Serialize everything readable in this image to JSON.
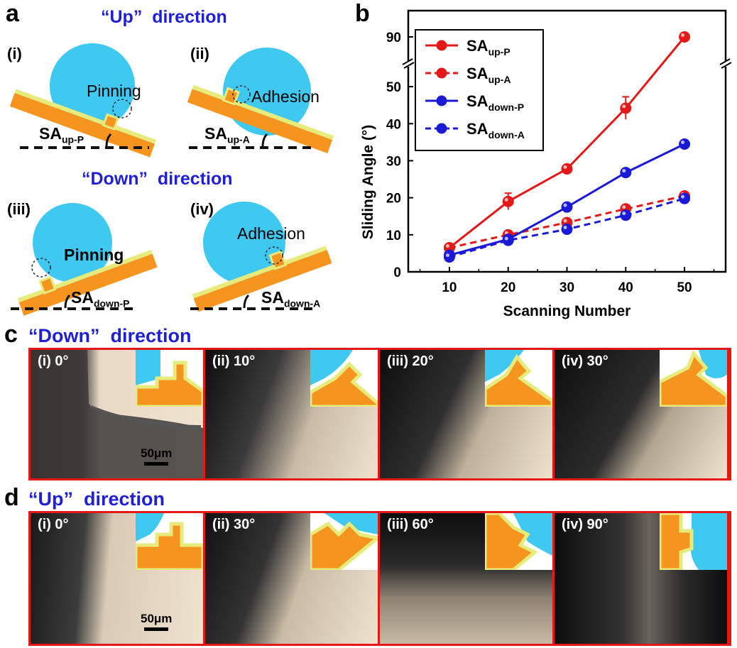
{
  "panel_letters": {
    "a": "a",
    "b": "b",
    "c": "c",
    "d": "d"
  },
  "panel_a": {
    "up_title": "“Up”  direction",
    "down_title": "“Down”  direction",
    "schematics": [
      {
        "sub": "(i)",
        "label": "Pinning",
        "sa_main": "SA",
        "sa_sub": "up-P"
      },
      {
        "sub": "(ii)",
        "label": "Adhesion",
        "sa_main": "SA",
        "sa_sub": "up-A"
      },
      {
        "sub": "(iii)",
        "label": "Pinning",
        "sa_main": "SA",
        "sa_sub": "down-P"
      },
      {
        "sub": "(iv)",
        "label": "Adhesion",
        "sa_main": "SA",
        "sa_sub": "down-A"
      }
    ]
  },
  "chart_data": {
    "type": "line",
    "title": "",
    "xlabel": "Scanning Number",
    "ylabel": "Sliding Angle (°)",
    "x": [
      10,
      20,
      30,
      40,
      50
    ],
    "xticks": [
      "10",
      "20",
      "30",
      "40",
      "50"
    ],
    "yticks": [
      "0",
      "10",
      "20",
      "30",
      "40",
      "50"
    ],
    "ybreak_tick": "90",
    "ylim": [
      0,
      55
    ],
    "axis_break": {
      "from": 55,
      "to": 85
    },
    "series": [
      {
        "name": "SA",
        "sub": "up-P",
        "color": "#e51818",
        "dashed": false,
        "values": [
          6.5,
          19,
          27.8,
          44.2,
          90
        ],
        "errors": [
          0.8,
          2.2,
          1.0,
          3.0,
          0.6
        ]
      },
      {
        "name": "SA",
        "sub": "up-A",
        "color": "#e51818",
        "dashed": true,
        "values": [
          6.5,
          10,
          13.3,
          17,
          20.5
        ],
        "errors": [
          0.6,
          0.8,
          0.8,
          0.8,
          0.6
        ]
      },
      {
        "name": "SA",
        "sub": "down-P",
        "color": "#1a1ad6",
        "dashed": false,
        "values": [
          4.5,
          8.8,
          17.5,
          26.8,
          34.5
        ],
        "errors": [
          0.6,
          0.8,
          0.8,
          1.0,
          0.6
        ]
      },
      {
        "name": "SA",
        "sub": "down-A",
        "color": "#1a1ad6",
        "dashed": true,
        "values": [
          4.0,
          8.5,
          11.5,
          15.3,
          19.8
        ],
        "errors": [
          0.6,
          0.6,
          0.8,
          0.8,
          0.6
        ]
      }
    ]
  },
  "panel_c": {
    "title": "“Down”  direction",
    "scale_label": "50μm",
    "panels": [
      {
        "label": "(i) 0°"
      },
      {
        "label": "(ii) 10°"
      },
      {
        "label": "(iii) 20°"
      },
      {
        "label": "(iv) 30°"
      }
    ]
  },
  "panel_d": {
    "title": "“Up”  direction",
    "scale_label": "50μm",
    "panels": [
      {
        "label": "(i) 0°"
      },
      {
        "label": "(ii) 30°"
      },
      {
        "label": "(iii) 60°"
      },
      {
        "label": "(iv) 90°"
      }
    ]
  },
  "colors": {
    "droplet": "#3fc8f0",
    "substrate": "#f5941e",
    "coating": "#e7eb7c",
    "frame": "#e51818",
    "title_blue": "#1f1fd6"
  }
}
